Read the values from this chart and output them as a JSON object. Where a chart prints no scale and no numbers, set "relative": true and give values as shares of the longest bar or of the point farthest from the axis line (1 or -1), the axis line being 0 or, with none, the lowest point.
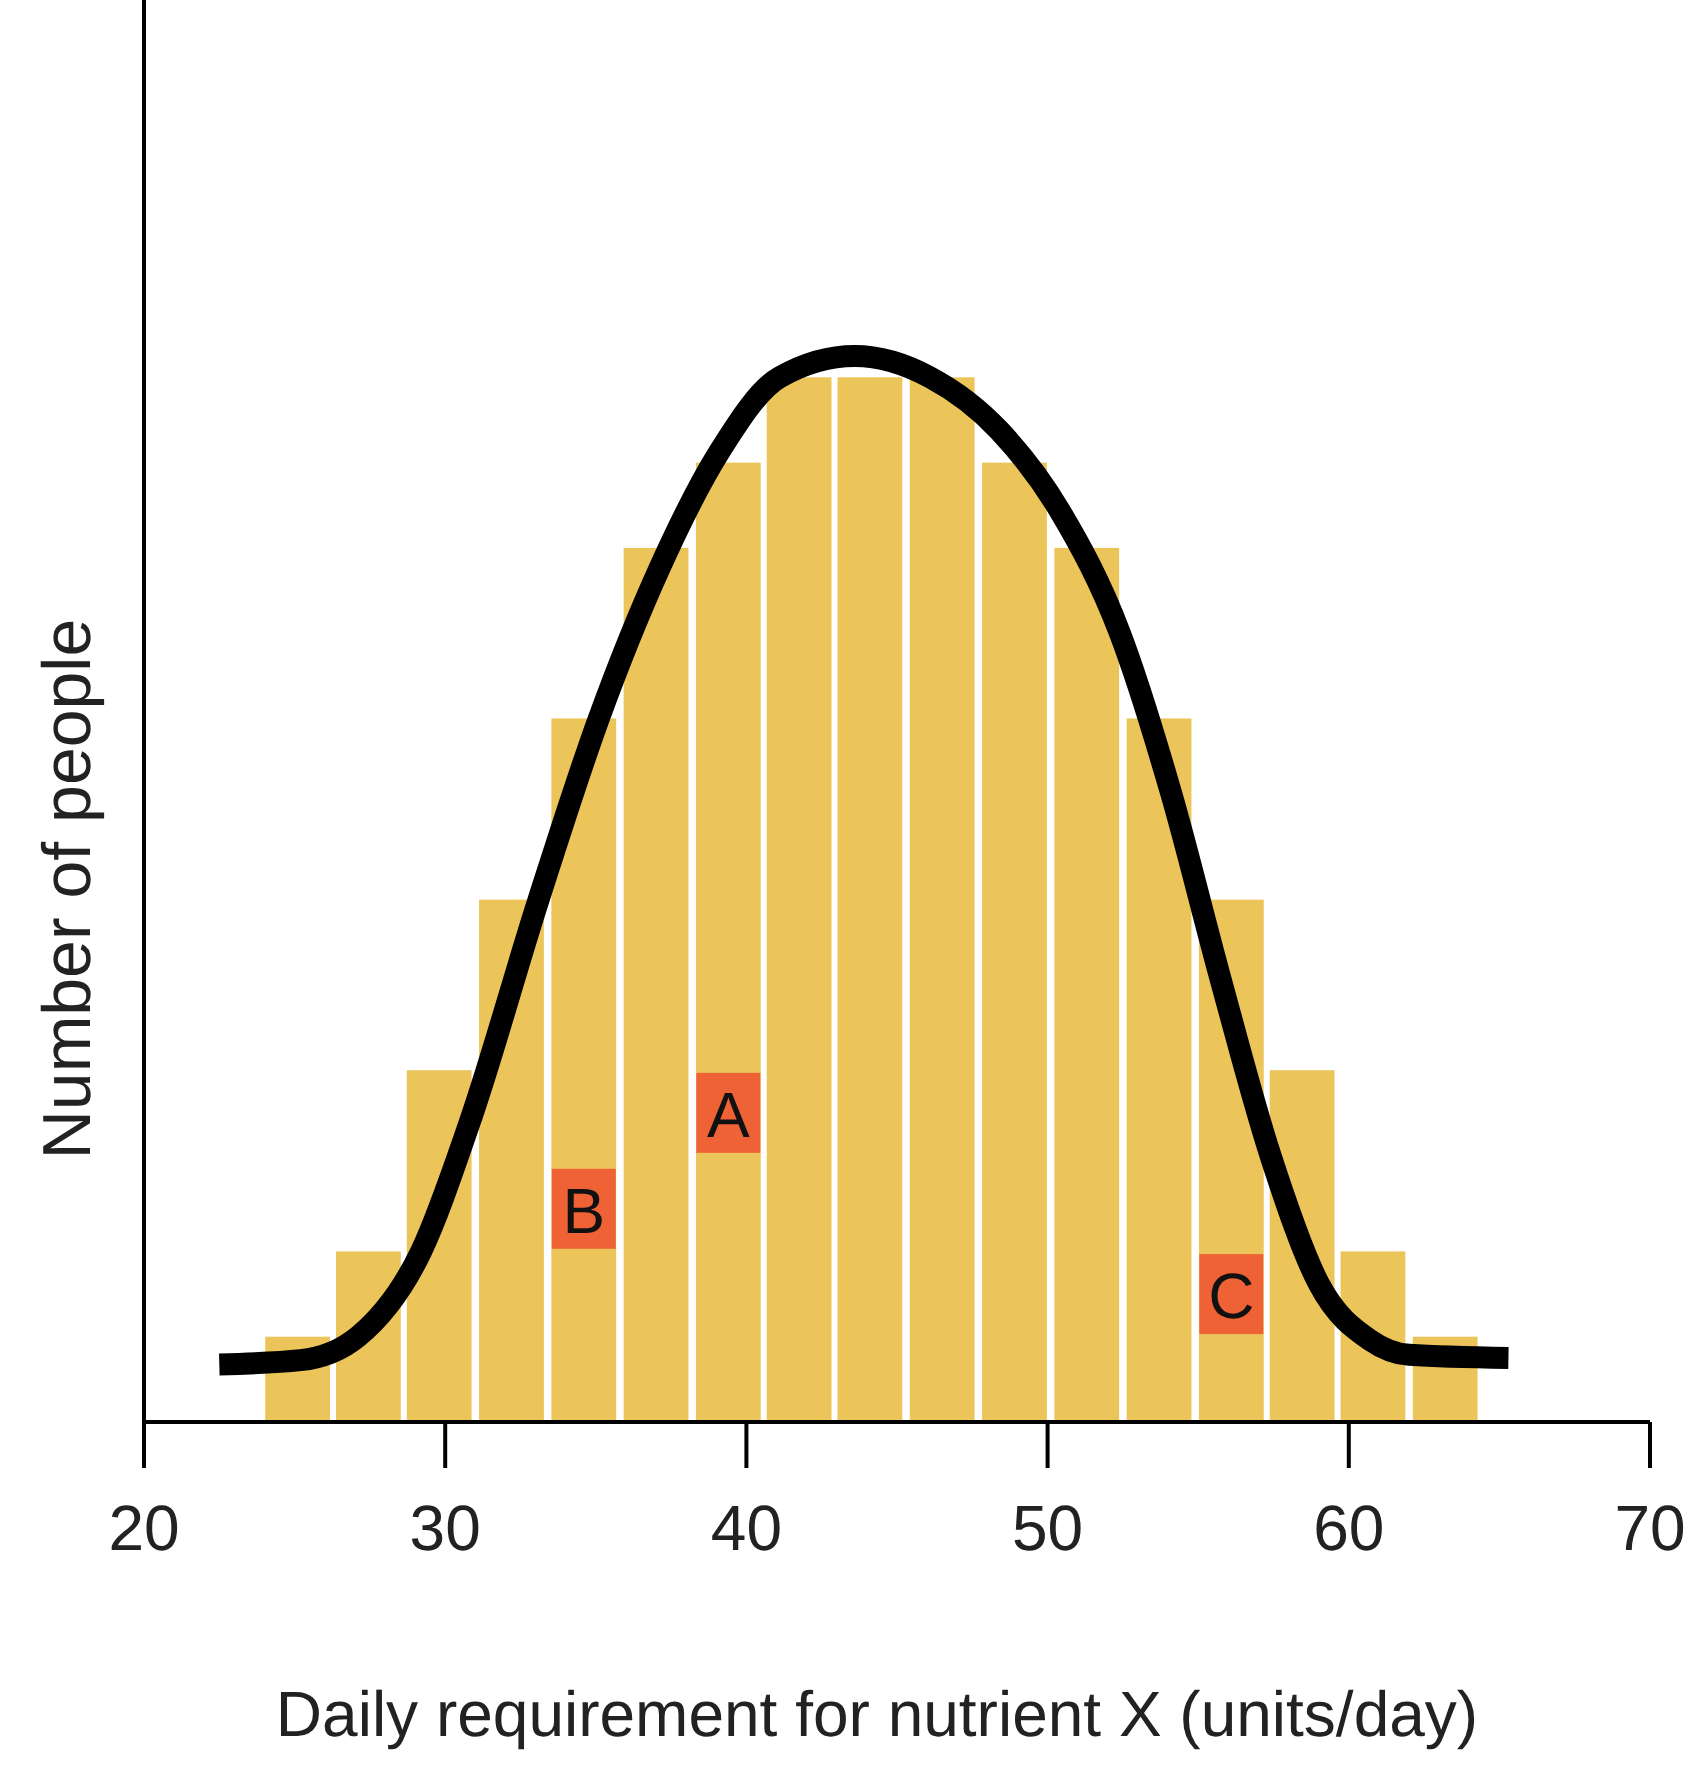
{
  "chart_data": {
    "type": "bar",
    "relative": true,
    "xlabel": "Daily requirement for nutrient X (units/day)",
    "ylabel": "Number of people",
    "x": [
      25.1,
      27.45,
      29.8,
      32.2,
      34.6,
      37.0,
      39.4,
      41.75,
      44.1,
      46.5,
      48.9,
      51.3,
      53.7,
      56.1,
      58.45,
      60.8,
      63.2
    ],
    "values": [
      0.08,
      0.16,
      0.33,
      0.49,
      0.66,
      0.82,
      0.9,
      0.98,
      0.98,
      0.98,
      0.9,
      0.82,
      0.66,
      0.49,
      0.33,
      0.16,
      0.08
    ],
    "color": "#ebc45a",
    "series": [
      {
        "type": "line",
        "color": "#000000",
        "x": [
          22.5,
          25.2,
          27.1,
          29.2,
          30.8,
          33.1,
          35.1,
          37.1,
          39.1,
          41.1,
          43.6,
          46.1,
          48.4,
          50.4,
          52.4,
          54.1,
          55.7,
          57.4,
          59.0,
          60.7,
          62.0,
          65.3
        ],
        "values": [
          0.054,
          0.058,
          0.08,
          0.16,
          0.28,
          0.49,
          0.66,
          0.8,
          0.91,
          0.98,
          1,
          0.98,
          0.93,
          0.855,
          0.74,
          0.59,
          0.42,
          0.25,
          0.13,
          0.077,
          0.063,
          0.06
        ]
      }
    ],
    "xlim": [
      20,
      70
    ],
    "xticks": [
      20,
      30,
      40,
      50,
      60,
      70
    ],
    "annotations": [
      {
        "text": "A",
        "x": 39.4,
        "y": 0.29
      },
      {
        "text": "B",
        "x": 34.6,
        "y": 0.2
      },
      {
        "text": "C",
        "x": 56.1,
        "y": 0.12
      }
    ]
  }
}
